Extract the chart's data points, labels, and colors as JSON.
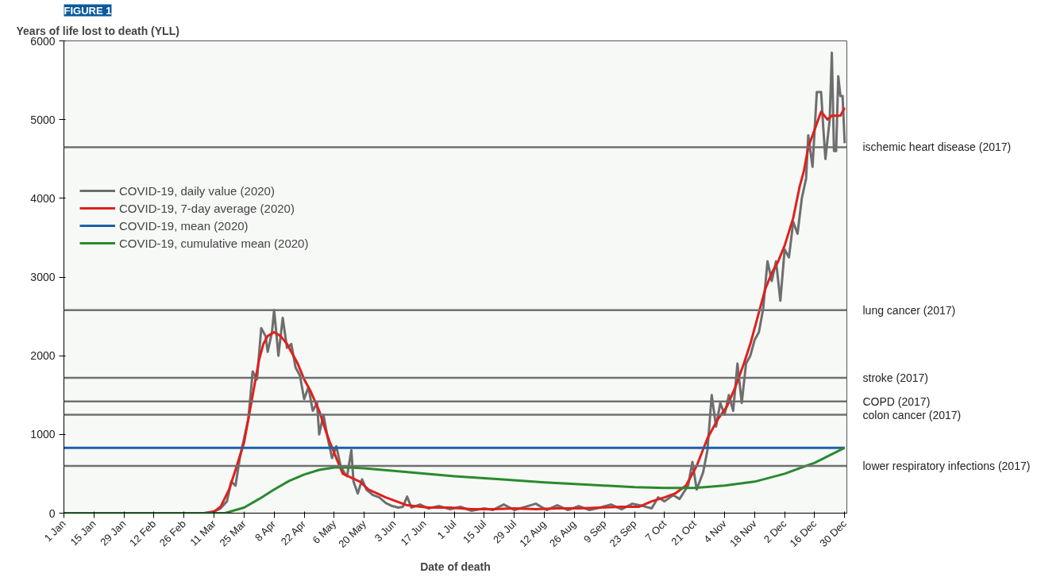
{
  "chart_data": {
    "type": "line",
    "title": "FIGURE 1",
    "ylabel": "Years of life lost to death (YLL)",
    "xlabel": "Date of death",
    "xlim": [
      "2020-01-01",
      "2020-12-31"
    ],
    "ylim": [
      0,
      6000
    ],
    "yticks": [
      0,
      1000,
      2000,
      3000,
      4000,
      5000,
      6000
    ],
    "xticks": [
      {
        "value": "2020-01-01",
        "label": "1 Jan"
      },
      {
        "value": "2020-01-15",
        "label": "15 Jan"
      },
      {
        "value": "2020-01-29",
        "label": "29 Jan"
      },
      {
        "value": "2020-02-12",
        "label": "12 Feb"
      },
      {
        "value": "2020-02-26",
        "label": "26 Feb"
      },
      {
        "value": "2020-03-11",
        "label": "11 Mar"
      },
      {
        "value": "2020-03-25",
        "label": "25 Mar"
      },
      {
        "value": "2020-04-08",
        "label": "8 Apr"
      },
      {
        "value": "2020-04-22",
        "label": "22 Apr"
      },
      {
        "value": "2020-05-06",
        "label": "6 May"
      },
      {
        "value": "2020-05-20",
        "label": "20 May"
      },
      {
        "value": "2020-06-03",
        "label": "3 Jun"
      },
      {
        "value": "2020-06-17",
        "label": "17 Jun"
      },
      {
        "value": "2020-07-01",
        "label": "1 Jul"
      },
      {
        "value": "2020-07-15",
        "label": "15 Jul"
      },
      {
        "value": "2020-07-29",
        "label": "29 Jul"
      },
      {
        "value": "2020-08-12",
        "label": "12 Aug"
      },
      {
        "value": "2020-08-26",
        "label": "26 Aug"
      },
      {
        "value": "2020-09-09",
        "label": "9 Sep"
      },
      {
        "value": "2020-09-23",
        "label": "23 Sep"
      },
      {
        "value": "2020-10-07",
        "label": "7 Oct"
      },
      {
        "value": "2020-10-21",
        "label": "21 Oct"
      },
      {
        "value": "2020-11-04",
        "label": "4 Nov"
      },
      {
        "value": "2020-11-18",
        "label": "18 Nov"
      },
      {
        "value": "2020-12-02",
        "label": "2 Dec"
      },
      {
        "value": "2020-12-16",
        "label": "16 Dec"
      },
      {
        "value": "2020-12-30",
        "label": "30 Dec"
      }
    ],
    "grid": false,
    "legend": "top left",
    "marker": "none",
    "line_style": "solid",
    "series": [
      {
        "name": "COVID-19, daily value (2020)",
        "color": "#6e6e6e",
        "x": [
          "2020-01-01",
          "2020-03-01",
          "2020-03-06",
          "2020-03-11",
          "2020-03-14",
          "2020-03-17",
          "2020-03-19",
          "2020-03-21",
          "2020-03-23",
          "2020-03-25",
          "2020-03-27",
          "2020-03-29",
          "2020-03-31",
          "2020-04-02",
          "2020-04-04",
          "2020-04-05",
          "2020-04-07",
          "2020-04-08",
          "2020-04-10",
          "2020-04-12",
          "2020-04-14",
          "2020-04-16",
          "2020-04-18",
          "2020-04-20",
          "2020-04-22",
          "2020-04-24",
          "2020-04-26",
          "2020-04-28",
          "2020-04-29",
          "2020-05-01",
          "2020-05-03",
          "2020-05-05",
          "2020-05-07",
          "2020-05-09",
          "2020-05-11",
          "2020-05-12",
          "2020-05-14",
          "2020-05-15",
          "2020-05-17",
          "2020-05-19",
          "2020-05-21",
          "2020-05-24",
          "2020-05-27",
          "2020-05-30",
          "2020-06-02",
          "2020-06-05",
          "2020-06-07",
          "2020-06-09",
          "2020-06-11",
          "2020-06-15",
          "2020-06-19",
          "2020-06-24",
          "2020-06-29",
          "2020-07-04",
          "2020-07-09",
          "2020-07-15",
          "2020-07-19",
          "2020-07-24",
          "2020-07-29",
          "2020-08-03",
          "2020-08-08",
          "2020-08-13",
          "2020-08-18",
          "2020-08-23",
          "2020-08-28",
          "2020-09-02",
          "2020-09-07",
          "2020-09-12",
          "2020-09-17",
          "2020-09-22",
          "2020-09-27",
          "2020-10-01",
          "2020-10-04",
          "2020-10-07",
          "2020-10-11",
          "2020-10-14",
          "2020-10-18",
          "2020-10-20",
          "2020-10-22",
          "2020-10-25",
          "2020-10-27",
          "2020-10-29",
          "2020-10-31",
          "2020-11-02",
          "2020-11-04",
          "2020-11-06",
          "2020-11-08",
          "2020-11-10",
          "2020-11-12",
          "2020-11-14",
          "2020-11-16",
          "2020-11-18",
          "2020-11-20",
          "2020-11-22",
          "2020-11-24",
          "2020-11-26",
          "2020-11-28",
          "2020-11-30",
          "2020-12-02",
          "2020-12-04",
          "2020-12-06",
          "2020-12-08",
          "2020-12-10",
          "2020-12-12",
          "2020-12-13",
          "2020-12-15",
          "2020-12-17",
          "2020-12-19",
          "2020-12-20",
          "2020-12-21",
          "2020-12-23",
          "2020-12-24",
          "2020-12-25",
          "2020-12-26",
          "2020-12-27",
          "2020-12-28",
          "2020-12-29",
          "2020-12-30"
        ],
        "values": [
          0,
          0,
          0,
          20,
          60,
          150,
          400,
          350,
          700,
          950,
          1200,
          1800,
          1700,
          2350,
          2250,
          2050,
          2300,
          2580,
          2000,
          2480,
          2100,
          2150,
          1850,
          1750,
          1450,
          1600,
          1300,
          1400,
          1000,
          1250,
          950,
          700,
          850,
          600,
          500,
          470,
          800,
          400,
          250,
          430,
          300,
          230,
          200,
          130,
          90,
          70,
          80,
          210,
          70,
          110,
          60,
          90,
          50,
          80,
          30,
          60,
          40,
          110,
          40,
          80,
          120,
          40,
          100,
          40,
          90,
          40,
          70,
          110,
          50,
          120,
          90,
          60,
          200,
          150,
          230,
          180,
          350,
          650,
          300,
          520,
          800,
          1500,
          1100,
          1400,
          1250,
          1500,
          1300,
          1900,
          1400,
          1900,
          2000,
          2200,
          2300,
          2600,
          3200,
          2950,
          3200,
          2700,
          3350,
          3250,
          3700,
          3550,
          4000,
          4250,
          4800,
          4400,
          5350,
          5350,
          4900,
          4500,
          5000,
          5850,
          4600,
          4600,
          5550,
          5300,
          5300,
          4700
        ]
      },
      {
        "name": "COVID-19, 7-day average (2020)",
        "color": "#e0201b",
        "x": [
          "2020-01-01",
          "2020-03-01",
          "2020-03-07",
          "2020-03-11",
          "2020-03-14",
          "2020-03-18",
          "2020-03-21",
          "2020-03-25",
          "2020-03-28",
          "2020-03-30",
          "2020-04-01",
          "2020-04-03",
          "2020-04-05",
          "2020-04-08",
          "2020-04-11",
          "2020-04-14",
          "2020-04-16",
          "2020-04-19",
          "2020-04-22",
          "2020-04-25",
          "2020-04-29",
          "2020-05-02",
          "2020-05-04",
          "2020-05-07",
          "2020-05-10",
          "2020-05-14",
          "2020-05-18",
          "2020-05-22",
          "2020-05-26",
          "2020-05-30",
          "2020-06-04",
          "2020-06-09",
          "2020-06-19",
          "2020-06-29",
          "2020-07-09",
          "2020-07-19",
          "2020-07-29",
          "2020-08-08",
          "2020-08-18",
          "2020-08-28",
          "2020-09-07",
          "2020-09-17",
          "2020-09-25",
          "2020-10-01",
          "2020-10-07",
          "2020-10-12",
          "2020-10-17",
          "2020-10-22",
          "2020-10-27",
          "2020-11-01",
          "2020-11-05",
          "2020-11-09",
          "2020-11-13",
          "2020-11-16",
          "2020-11-20",
          "2020-11-23",
          "2020-11-26",
          "2020-11-29",
          "2020-12-02",
          "2020-12-06",
          "2020-12-09",
          "2020-12-11",
          "2020-12-13",
          "2020-12-15",
          "2020-12-17",
          "2020-12-19",
          "2020-12-22",
          "2020-12-24",
          "2020-12-26",
          "2020-12-28",
          "2020-12-30"
        ],
        "values": [
          0,
          0,
          0,
          20,
          80,
          300,
          550,
          900,
          1350,
          1650,
          1950,
          2150,
          2250,
          2300,
          2250,
          2150,
          2050,
          1900,
          1700,
          1550,
          1300,
          1050,
          900,
          700,
          500,
          450,
          400,
          300,
          250,
          200,
          150,
          100,
          70,
          70,
          50,
          50,
          60,
          50,
          60,
          60,
          70,
          80,
          80,
          150,
          200,
          250,
          350,
          600,
          950,
          1200,
          1350,
          1600,
          1900,
          2150,
          2550,
          2850,
          3050,
          3200,
          3400,
          3750,
          4150,
          4350,
          4650,
          4800,
          4950,
          5100,
          5000,
          5050,
          5050,
          5050,
          5150
        ]
      },
      {
        "name": "COVID-19, mean (2020)",
        "color": "#1f5fa8",
        "x": [
          "2020-01-01",
          "2020-12-30"
        ],
        "values": [
          830,
          830
        ]
      },
      {
        "name": "COVID-19, cumulative mean (2020)",
        "color": "#2a8a2e",
        "x": [
          "2020-01-01",
          "2020-03-16",
          "2020-03-25",
          "2020-04-01",
          "2020-04-08",
          "2020-04-15",
          "2020-04-22",
          "2020-04-29",
          "2020-05-06",
          "2020-05-13",
          "2020-05-20",
          "2020-06-10",
          "2020-07-01",
          "2020-07-22",
          "2020-08-12",
          "2020-09-02",
          "2020-09-23",
          "2020-10-07",
          "2020-10-21",
          "2020-11-04",
          "2020-11-18",
          "2020-12-02",
          "2020-12-16",
          "2020-12-30"
        ],
        "values": [
          0,
          0,
          70,
          180,
          300,
          410,
          490,
          550,
          580,
          580,
          570,
          520,
          470,
          430,
          390,
          360,
          330,
          320,
          320,
          350,
          400,
          500,
          640,
          830
        ]
      }
    ],
    "ref_lines": [
      {
        "axis": "y",
        "value": 4650,
        "label": "ischemic heart disease (2017)",
        "color": "#707070"
      },
      {
        "axis": "y",
        "value": 2580,
        "label": "lung cancer (2017)",
        "color": "#707070"
      },
      {
        "axis": "y",
        "value": 1720,
        "label": "stroke (2017)",
        "color": "#707070"
      },
      {
        "axis": "y",
        "value": 1420,
        "label": "COPD (2017)",
        "color": "#707070"
      },
      {
        "axis": "y",
        "value": 1250,
        "label": "colon cancer (2017)",
        "color": "#707070"
      },
      {
        "axis": "y",
        "value": 600,
        "label": "lower respiratory infections (2017)",
        "color": "#707070"
      }
    ]
  }
}
